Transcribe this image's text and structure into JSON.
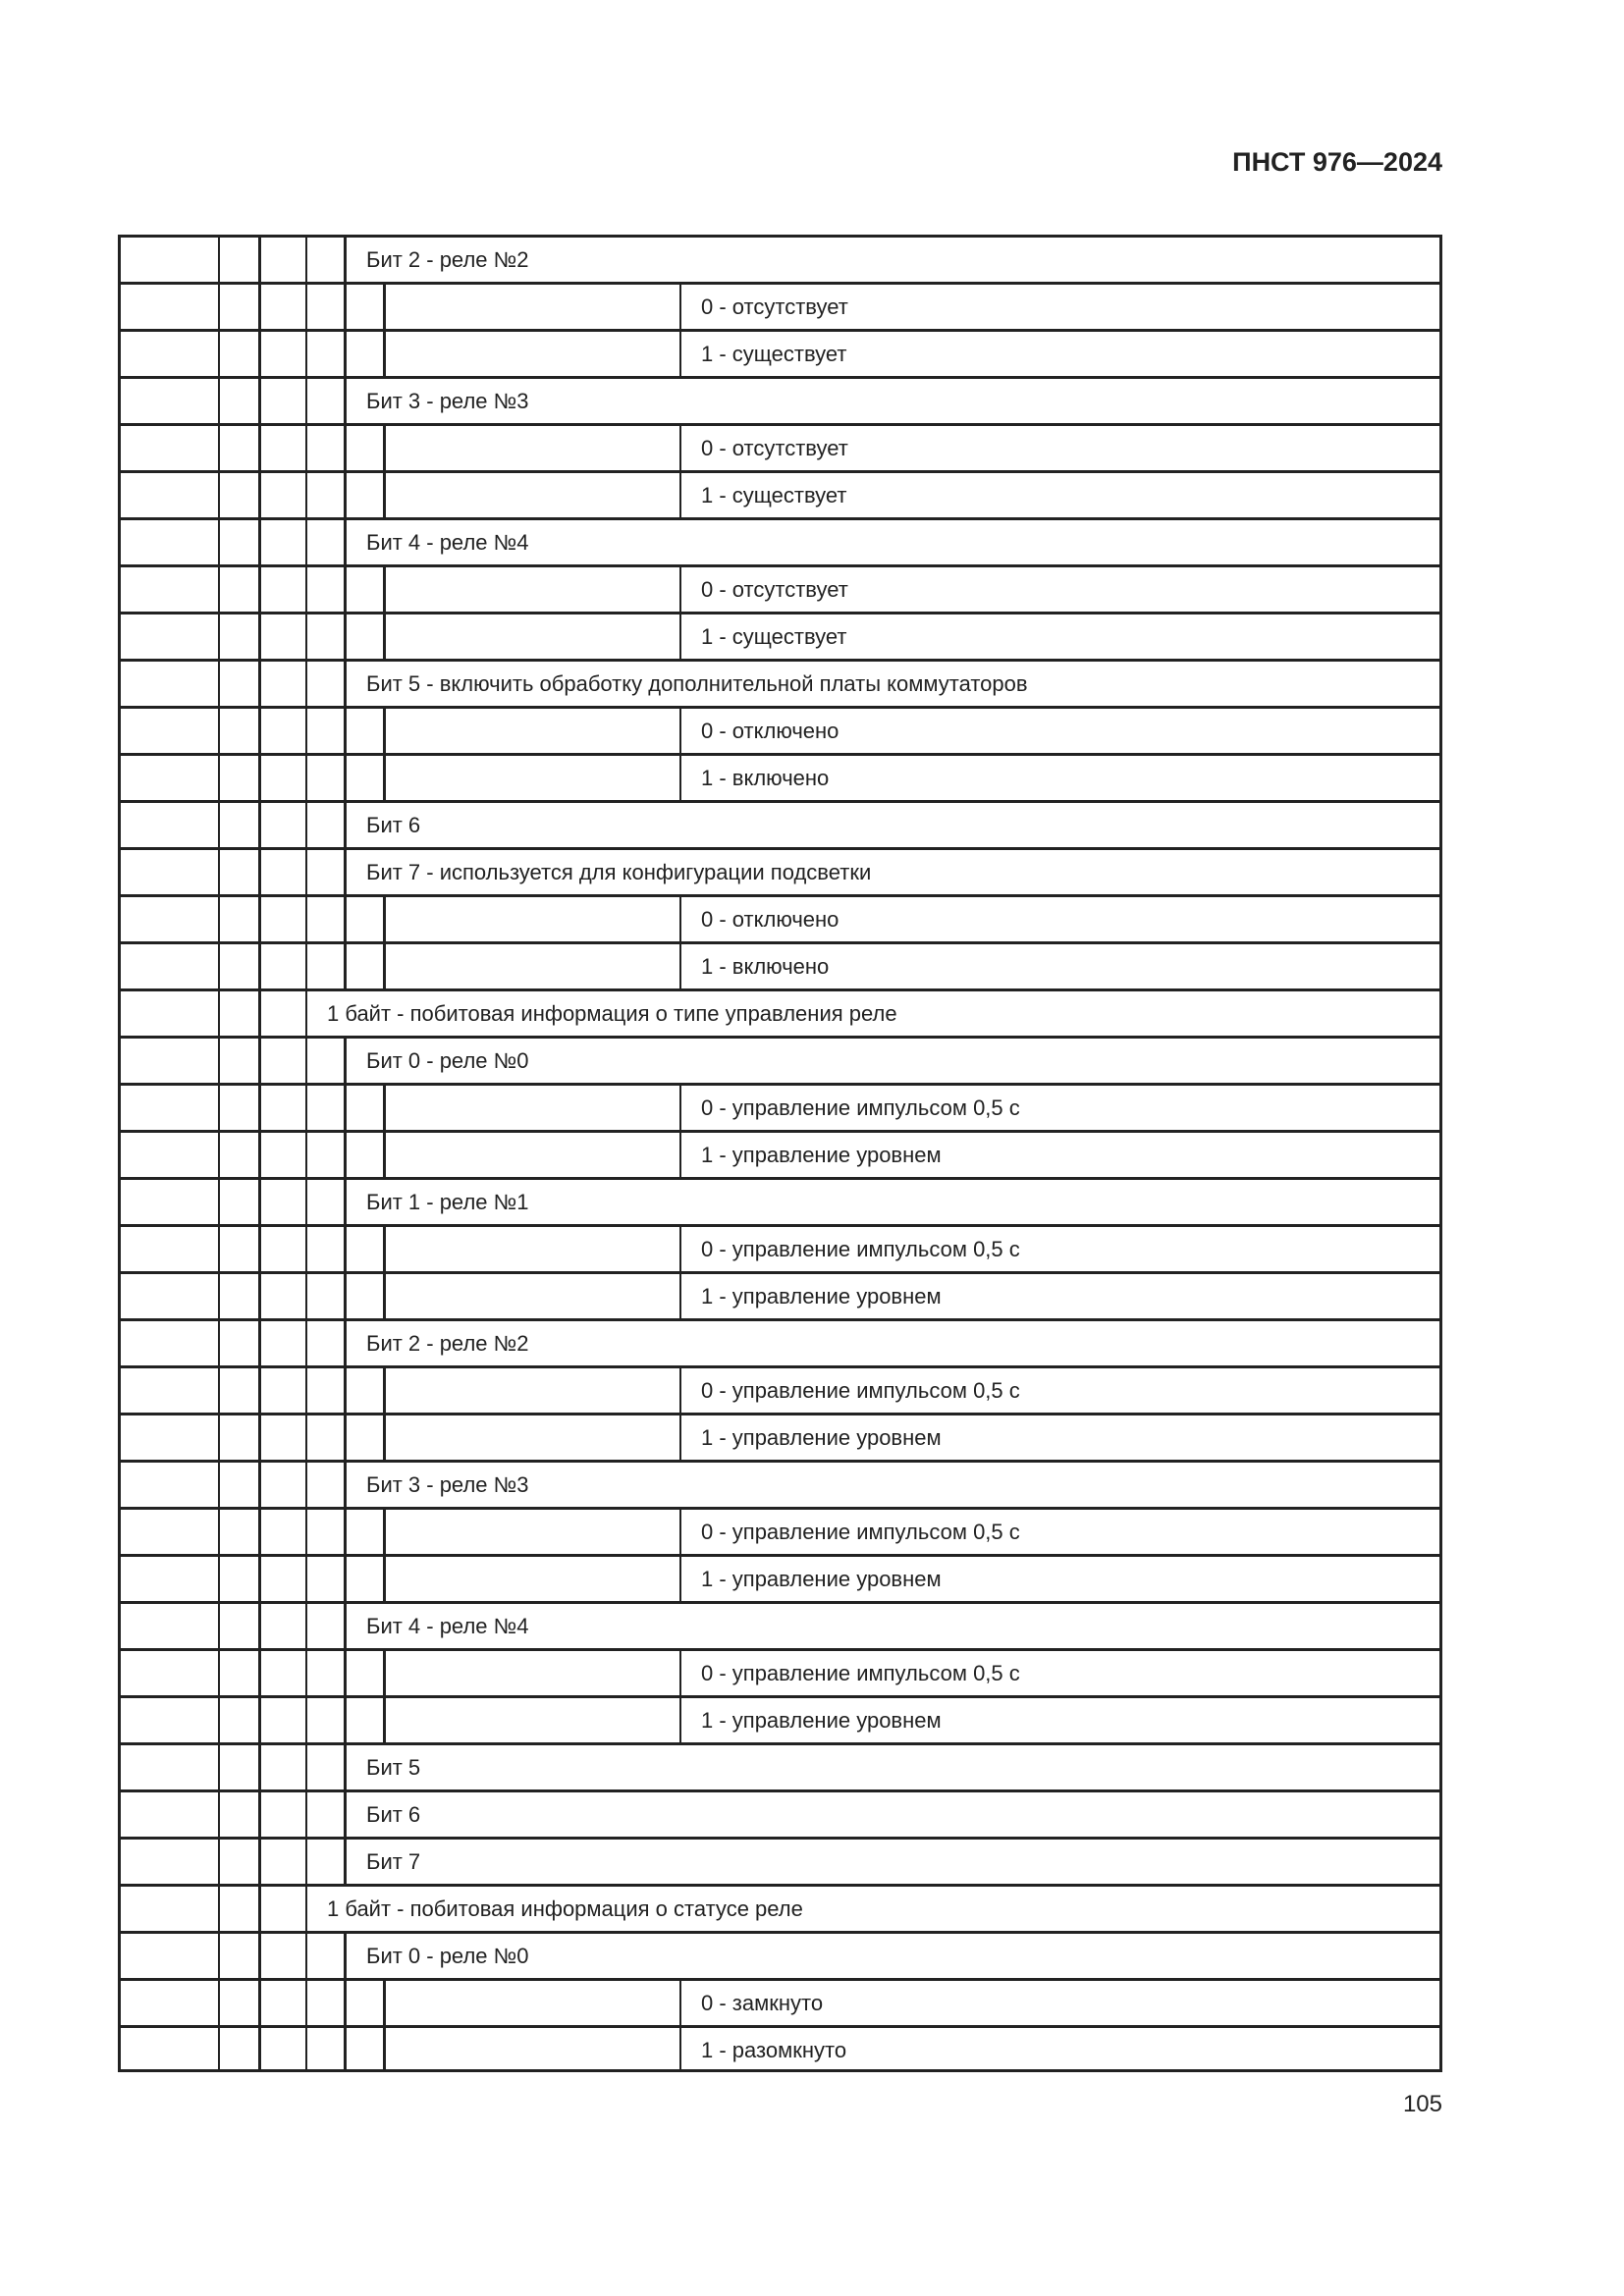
{
  "header": {
    "doc_code": "ПНСТ 976—2024"
  },
  "page_number": "105",
  "table": {
    "rows": [
      {
        "type": "bit",
        "text": "Бит 2 - реле №2"
      },
      {
        "type": "val",
        "text": "0 - отсутствует"
      },
      {
        "type": "val",
        "text": "1 - существует"
      },
      {
        "type": "bit",
        "text": "Бит 3 - реле №3"
      },
      {
        "type": "val",
        "text": "0 - отсутствует"
      },
      {
        "type": "val",
        "text": "1 - существует"
      },
      {
        "type": "bit",
        "text": "Бит 4 - реле №4"
      },
      {
        "type": "val",
        "text": "0 - отсутствует"
      },
      {
        "type": "val",
        "text": "1 - существует"
      },
      {
        "type": "bit",
        "text": "Бит 5 - включить обработку дополнительной платы коммутаторов"
      },
      {
        "type": "val",
        "text": "0 - отключено"
      },
      {
        "type": "val",
        "text": "1 - включено"
      },
      {
        "type": "bit",
        "text": "Бит 6"
      },
      {
        "type": "bit",
        "text": "Бит 7 - используется для конфигурации подсветки"
      },
      {
        "type": "val",
        "text": "0 - отключено"
      },
      {
        "type": "val",
        "text": "1 - включено"
      },
      {
        "type": "byte",
        "text": "1 байт - побитовая информация о типе управления реле"
      },
      {
        "type": "bit",
        "text": "Бит 0 - реле №0"
      },
      {
        "type": "val",
        "text": "0 - управление импульсом 0,5 с"
      },
      {
        "type": "val",
        "text": "1 - управление уровнем"
      },
      {
        "type": "bit",
        "text": "Бит 1 - реле №1"
      },
      {
        "type": "val",
        "text": "0 - управление импульсом 0,5 с"
      },
      {
        "type": "val",
        "text": "1 - управление уровнем"
      },
      {
        "type": "bit",
        "text": "Бит 2 - реле №2"
      },
      {
        "type": "val",
        "text": "0 - управление импульсом 0,5 с"
      },
      {
        "type": "val",
        "text": "1 - управление уровнем"
      },
      {
        "type": "bit",
        "text": "Бит 3 - реле №3"
      },
      {
        "type": "val",
        "text": "0 - управление импульсом 0,5 с"
      },
      {
        "type": "val",
        "text": "1 - управление уровнем"
      },
      {
        "type": "bit",
        "text": "Бит 4 - реле №4"
      },
      {
        "type": "val",
        "text": "0 - управление импульсом 0,5 с"
      },
      {
        "type": "val",
        "text": "1 - управление уровнем"
      },
      {
        "type": "bit",
        "text": "Бит 5"
      },
      {
        "type": "bit",
        "text": "Бит 6"
      },
      {
        "type": "bit",
        "text": "Бит 7"
      },
      {
        "type": "byte",
        "text": "1 байт - побитовая информация о статусе реле"
      },
      {
        "type": "bit",
        "text": "Бит 0 - реле №0"
      },
      {
        "type": "val",
        "text": "0 - замкнуто"
      },
      {
        "type": "val",
        "text": "1 - разомкнуто"
      }
    ]
  }
}
